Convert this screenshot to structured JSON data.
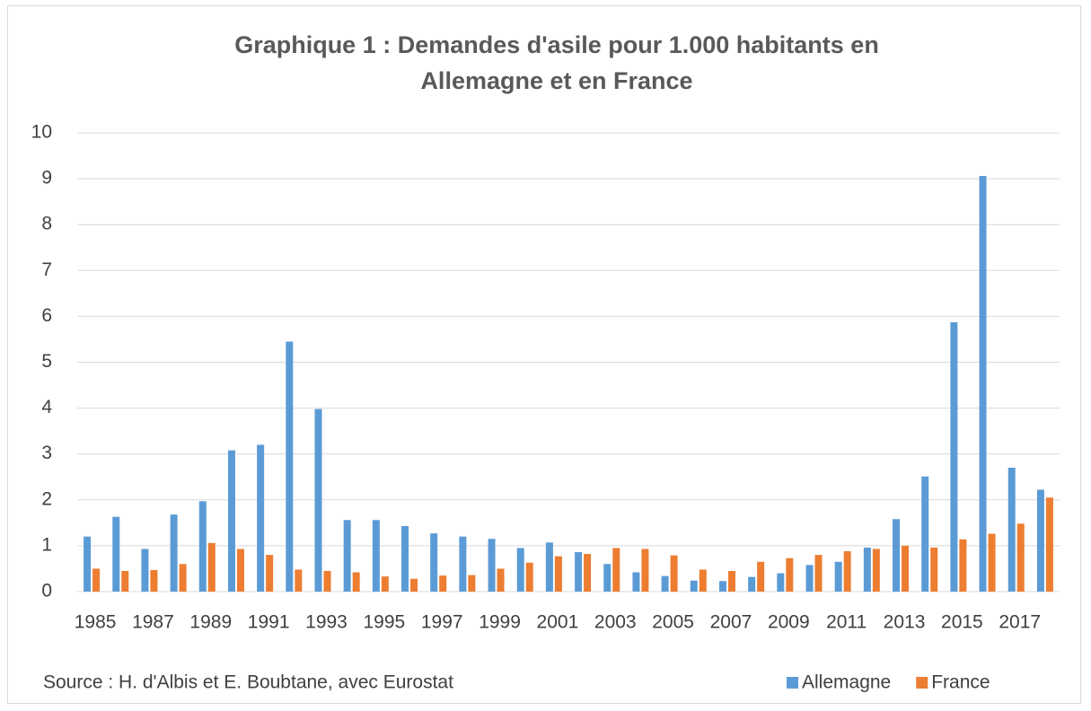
{
  "chart_data": {
    "type": "bar",
    "title": "Graphique 1 : Demandes d'asile pour 1.000 habitants en Allemagne et en France",
    "source": "Source : H. d'Albis et E. Boubtane, avec Eurostat",
    "categories": [
      "1985",
      null,
      "1987",
      null,
      "1989",
      null,
      "1991",
      null,
      "1993",
      null,
      "1995",
      null,
      "1997",
      null,
      "1999",
      null,
      "2001",
      null,
      "2003",
      null,
      "2005",
      null,
      "2007",
      null,
      "2009",
      null,
      "2011",
      null,
      "2013",
      null,
      "2015",
      null,
      "2017",
      null
    ],
    "series": [
      {
        "name": "Allemagne",
        "color": "#5b9bd5",
        "values": [
          1.2,
          1.63,
          0.93,
          1.68,
          1.97,
          3.08,
          3.2,
          5.45,
          3.98,
          1.56,
          1.56,
          1.43,
          1.27,
          1.2,
          1.15,
          0.95,
          1.07,
          0.86,
          0.6,
          0.42,
          0.34,
          0.24,
          0.23,
          0.32,
          0.4,
          0.58,
          0.65,
          0.96,
          1.58,
          2.51,
          5.87,
          9.06,
          2.7,
          2.22
        ]
      },
      {
        "name": "France",
        "color": "#ed7d31",
        "values": [
          0.5,
          0.45,
          0.47,
          0.6,
          1.06,
          0.93,
          0.8,
          0.48,
          0.45,
          0.42,
          0.33,
          0.28,
          0.35,
          0.36,
          0.5,
          0.63,
          0.77,
          0.82,
          0.95,
          0.93,
          0.79,
          0.48,
          0.45,
          0.65,
          0.73,
          0.8,
          0.88,
          0.93,
          1.0,
          0.96,
          1.14,
          1.26,
          1.48,
          2.05
        ]
      }
    ],
    "ylim": [
      0,
      10
    ],
    "yticks": [
      0,
      1,
      2,
      3,
      4,
      5,
      6,
      7,
      8,
      9,
      10
    ],
    "grid": true,
    "legend": "bottom-right"
  }
}
